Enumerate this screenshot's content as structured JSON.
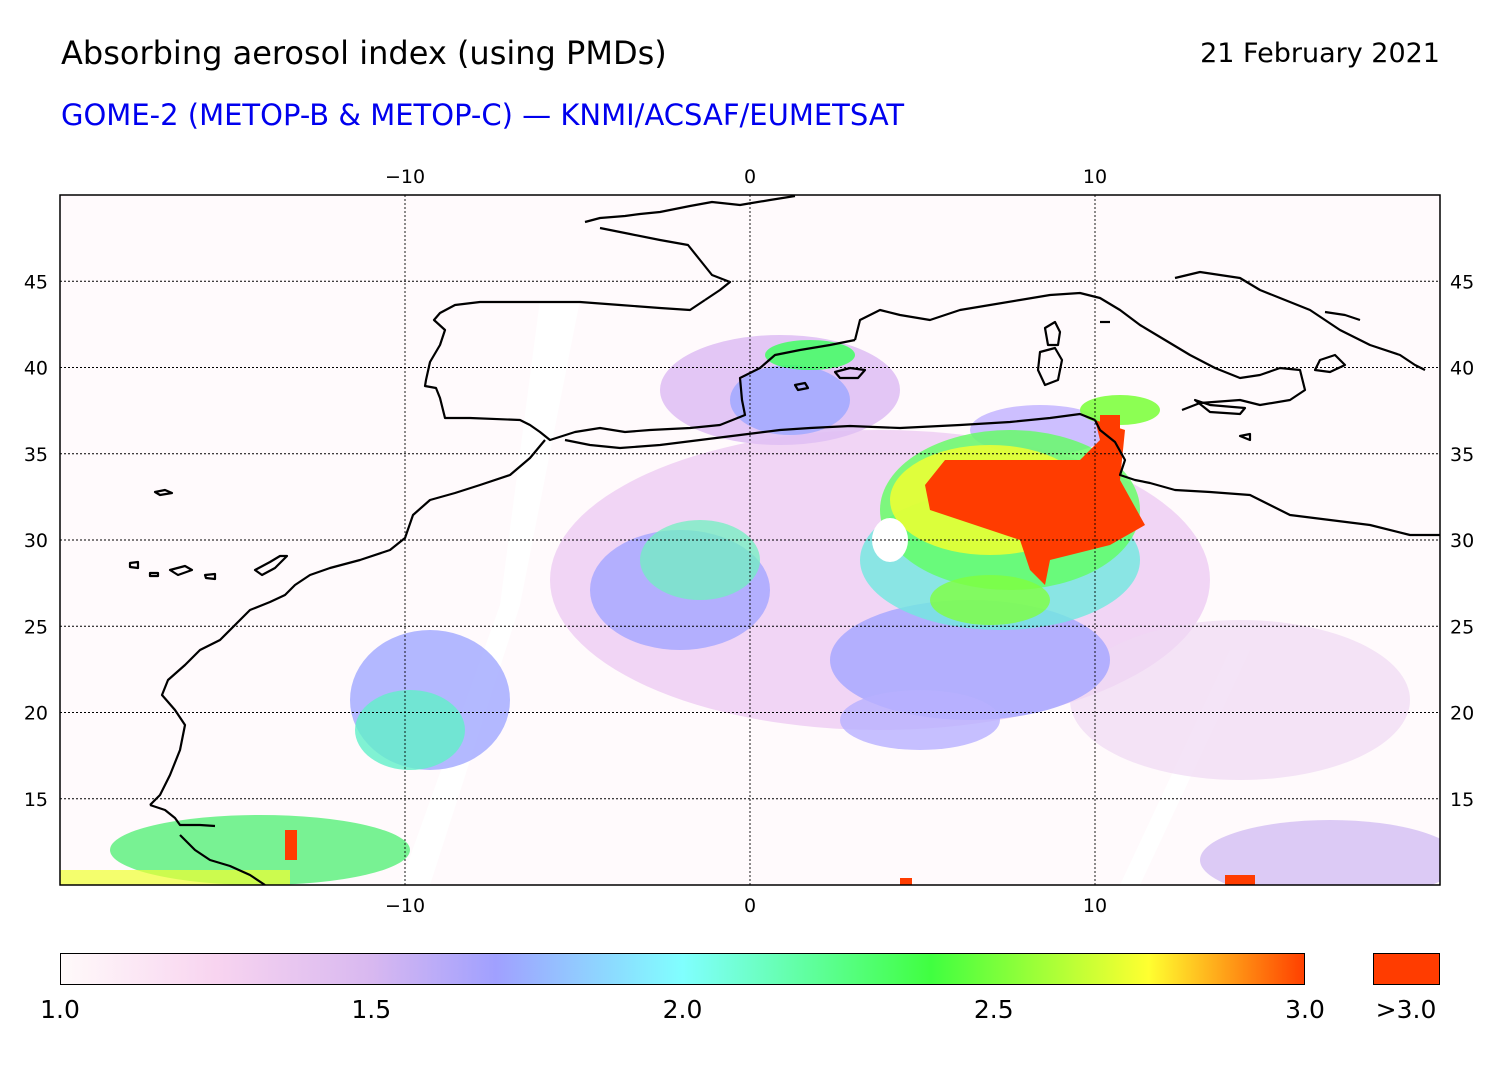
{
  "header": {
    "title": "Absorbing aerosol index (using PMDs)",
    "date": "21 February 2021",
    "subtitle": "GOME-2 (METOP-B & METOP-C) — KNMI/ACSAF/EUMETSAT"
  },
  "map": {
    "projection": "equirectangular",
    "lon_range": [
      -20,
      20
    ],
    "lat_range": [
      10,
      50
    ],
    "grid": true,
    "lon_ticks": [
      {
        "value": -10,
        "label": "−10"
      },
      {
        "value": 0,
        "label": "0"
      },
      {
        "value": 10,
        "label": "10"
      }
    ],
    "lat_ticks": [
      {
        "value": 45,
        "label": "45"
      },
      {
        "value": 40,
        "label": "40"
      },
      {
        "value": 35,
        "label": "35"
      },
      {
        "value": 30,
        "label": "30"
      },
      {
        "value": 25,
        "label": "25"
      },
      {
        "value": 20,
        "label": "20"
      },
      {
        "value": 15,
        "label": "15"
      }
    ]
  },
  "colorbar": {
    "stops": [
      {
        "value": 1.0,
        "color": "#fffafa"
      },
      {
        "value": 1.25,
        "color": "#f8d4f0"
      },
      {
        "value": 1.5,
        "color": "#d8b8f0"
      },
      {
        "value": 1.7,
        "color": "#a0a0ff"
      },
      {
        "value": 2.0,
        "color": "#80ffff"
      },
      {
        "value": 2.4,
        "color": "#40ff40"
      },
      {
        "value": 2.75,
        "color": "#ffff30"
      },
      {
        "value": 3.0,
        "color": "#ff4000"
      }
    ],
    "over_color": "#ff3c00",
    "tick_labels": [
      {
        "value": 1.0,
        "label": "1.0"
      },
      {
        "value": 1.5,
        "label": "1.5"
      },
      {
        "value": 2.0,
        "label": "2.0"
      },
      {
        "value": 2.5,
        "label": "2.5"
      },
      {
        "value": 3.0,
        "label": "3.0"
      }
    ],
    "over_label": ">3.0"
  }
}
